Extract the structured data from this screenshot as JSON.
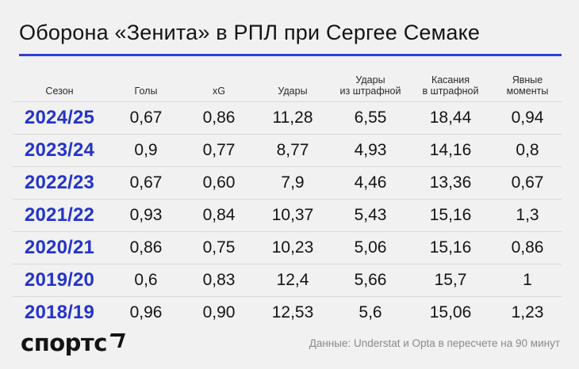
{
  "title": "Оборона «Зенита» в РПЛ при Сергее Семаке",
  "columns": [
    "Сезон",
    "Голы",
    "xG",
    "Удары",
    "Удары\nиз штрафной",
    "Касания\nв штрафной",
    "Явные\nмоменты"
  ],
  "rows": [
    [
      "2024/25",
      "0,67",
      "0,86",
      "11,28",
      "6,55",
      "18,44",
      "0,94"
    ],
    [
      "2023/24",
      "0,9",
      "0,77",
      "8,77",
      "4,93",
      "14,16",
      "0,8"
    ],
    [
      "2022/23",
      "0,67",
      "0,60",
      "7,9",
      "4,46",
      "13,36",
      "0,67"
    ],
    [
      "2021/22",
      "0,93",
      "0,84",
      "10,37",
      "5,43",
      "15,16",
      "1,3"
    ],
    [
      "2020/21",
      "0,86",
      "0,75",
      "10,23",
      "5,06",
      "15,16",
      "0,86"
    ],
    [
      "2019/20",
      "0,6",
      "0,83",
      "12,4",
      "5,66",
      "15,7",
      "1"
    ],
    [
      "2018/19",
      "0,96",
      "0,90",
      "12,53",
      "5,6",
      "15,06",
      "1,23"
    ]
  ],
  "footer": {
    "logo": "спортс",
    "logo_icon": "corner-arrow-icon",
    "source": "Данные: Understat и Opta в пересчете на 90 минут"
  },
  "colors": {
    "accent": "#2d3fd6",
    "season_text": "#2434c8",
    "background": "#f1f1f1"
  }
}
